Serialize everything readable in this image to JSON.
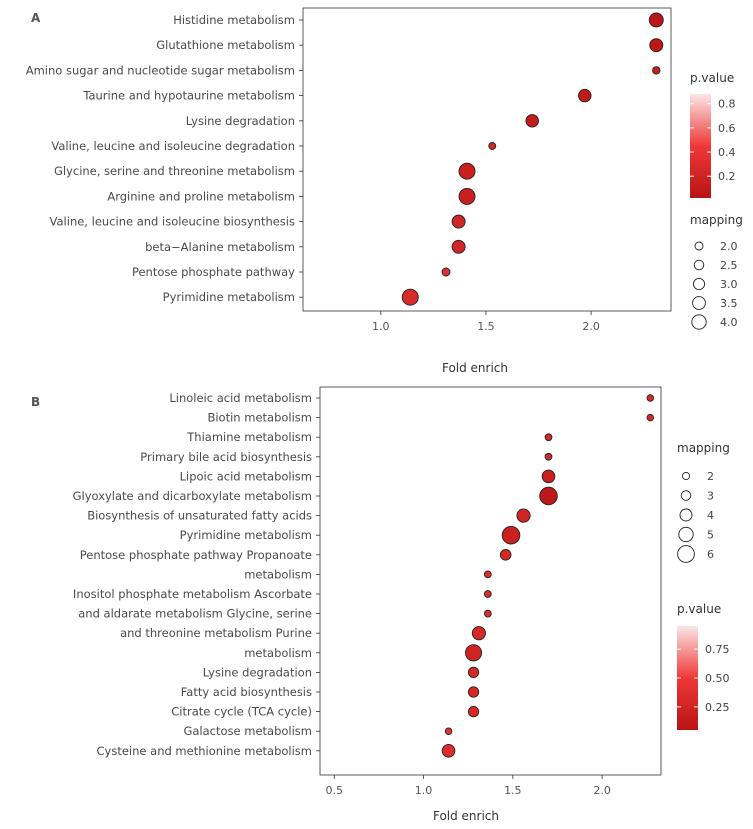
{
  "chart_data": [
    {
      "type": "scatter",
      "panel": "A",
      "xlabel": "Fold enrich",
      "xlim": [
        0.63,
        2.38
      ],
      "xticks": [
        "1.0",
        "1.5",
        "2.0"
      ],
      "xtick_values": [
        1.0,
        1.5,
        2.0
      ],
      "categories": [
        "Histidine metabolism",
        "Glutathione metabolism",
        "Amino sugar and nucleotide sugar metabolism",
        "Taurine and hypotaurine metabolism",
        "Lysine degradation",
        "Valine, leucine and isoleucine degradation",
        "Glycine, serine and threonine metabolism",
        "Arginine and proline metabolism",
        "Valine, leucine and isoleucine biosynthesis",
        "beta−Alanine metabolism",
        "Pentose phosphate pathway",
        "Pyrimidine metabolism"
      ],
      "fold_enrich": [
        2.31,
        2.31,
        2.31,
        1.97,
        1.72,
        1.53,
        1.41,
        1.41,
        1.37,
        1.37,
        1.31,
        1.14
      ],
      "mapping": [
        3.6,
        3.4,
        2.3,
        3.3,
        3.3,
        2.2,
        4.0,
        4.0,
        3.4,
        3.4,
        2.4,
        4.0
      ],
      "pvalue": [
        0.05,
        0.06,
        0.15,
        0.08,
        0.1,
        0.25,
        0.15,
        0.15,
        0.22,
        0.22,
        0.35,
        0.28
      ],
      "legend_pvalue": {
        "title": "p.value",
        "labels": [
          "0.8",
          "0.6",
          "0.4",
          "0.2"
        ],
        "values": [
          0.8,
          0.6,
          0.4,
          0.2
        ],
        "range": [
          0.02,
          0.88
        ]
      },
      "legend_mapping": {
        "title": "mapping",
        "labels": [
          "2.0",
          "2.5",
          "3.0",
          "3.5",
          "4.0"
        ],
        "values": [
          2.0,
          2.5,
          3.0,
          3.5,
          4.0
        ]
      }
    },
    {
      "type": "scatter",
      "panel": "B",
      "xlabel": "Fold enrich",
      "xlim": [
        0.42,
        2.33
      ],
      "xticks": [
        "0.5",
        "1.0",
        "1.5",
        "2.0"
      ],
      "xtick_values": [
        0.5,
        1.0,
        1.5,
        2.0
      ],
      "categories": [
        "Linoleic acid metabolism",
        "Biotin metabolism",
        "Thiamine metabolism",
        "Primary bile acid biosynthesis",
        "Lipoic acid metabolism",
        "Glyoxylate and dicarboxylate metabolism",
        "Biosynthesis of unsaturated fatty acids",
        "Pyrimidine metabolism",
        "Pentose phosphate pathway Propanoate",
        "metabolism",
        "Inositol phosphate metabolism Ascorbate",
        "and aldarate metabolism Glycine, serine",
        "and threonine metabolism Purine",
        "metabolism",
        "Lysine degradation",
        "Fatty acid biosynthesis",
        "Citrate cycle (TCA cycle)",
        "Galactose metabolism",
        "Cysteine and methionine metabolism"
      ],
      "fold_enrich": [
        2.27,
        2.27,
        1.7,
        1.7,
        1.7,
        1.7,
        1.56,
        1.49,
        1.46,
        1.36,
        1.36,
        1.36,
        1.31,
        1.28,
        1.28,
        1.28,
        1.28,
        1.14,
        1.14
      ],
      "mapping": [
        2.2,
        2.2,
        2.3,
        2.3,
        4.3,
        6.0,
        4.5,
        6.0,
        3.6,
        2.3,
        2.3,
        2.3,
        4.5,
        5.5,
        3.5,
        3.5,
        3.5,
        2.2,
        4.3
      ],
      "pvalue": [
        0.3,
        0.3,
        0.3,
        0.3,
        0.2,
        0.1,
        0.25,
        0.2,
        0.3,
        0.35,
        0.35,
        0.35,
        0.3,
        0.25,
        0.3,
        0.3,
        0.3,
        0.4,
        0.35
      ],
      "legend_mapping": {
        "title": "mapping",
        "labels": [
          "2",
          "3",
          "4",
          "5",
          "6"
        ],
        "values": [
          2,
          3,
          4,
          5,
          6
        ]
      },
      "legend_pvalue": {
        "title": "p.value",
        "labels": [
          "0.75",
          "0.50",
          "0.25"
        ],
        "values": [
          0.75,
          0.5,
          0.25
        ],
        "range": [
          0.05,
          0.95
        ]
      }
    }
  ]
}
